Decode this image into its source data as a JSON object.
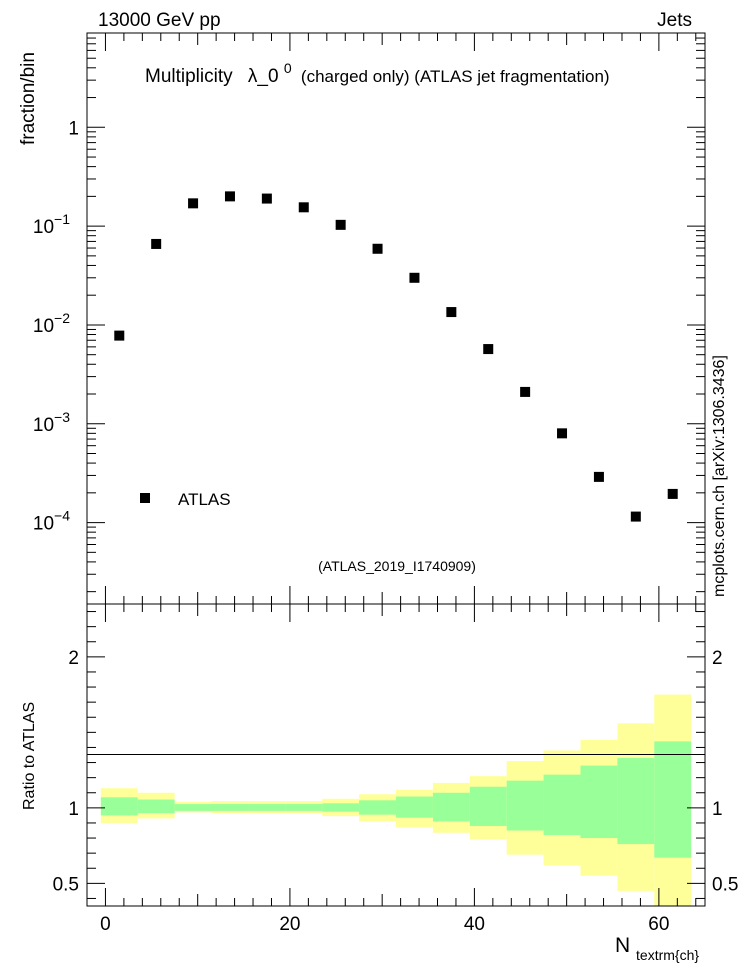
{
  "header": {
    "left": "13000 GeV pp",
    "right": "Jets"
  },
  "side_label": "mcplots.cern.ch [arXiv:1306.3436]",
  "analysis_tag": "(ATLAS_2019_I1740909)",
  "title": {
    "prefix": "Multiplicity",
    "symbol": "λ_0",
    "superscript": "0",
    "suffix": "(charged only) (ATLAS jet fragmentation)"
  },
  "colors": {
    "yellow_band": "#ffff99",
    "green_band": "#99ff99",
    "marker": "#000000",
    "tag": "#999999"
  },
  "chart_data": [
    {
      "type": "scatter",
      "ylabel": "fraction/bin",
      "yscale": "log",
      "ylim": [
        1.5e-05,
        9
      ],
      "xlim": [
        -2,
        65
      ],
      "yticks": [
        {
          "value": 1,
          "base": "1",
          "exp": ""
        },
        {
          "value": 0.1,
          "base": "10",
          "exp": "−1"
        },
        {
          "value": 0.01,
          "base": "10",
          "exp": "−2"
        },
        {
          "value": 0.001,
          "base": "10",
          "exp": "−3"
        },
        {
          "value": 0.0001,
          "base": "10",
          "exp": "−4"
        }
      ],
      "legend": [
        {
          "name": "ATLAS",
          "marker": "square"
        }
      ],
      "series": [
        {
          "name": "ATLAS",
          "x": [
            1.5,
            5.5,
            9.5,
            13.5,
            17.5,
            21.5,
            25.5,
            29.5,
            33.5,
            37.5,
            41.5,
            45.5,
            49.5,
            53.5,
            57.5,
            61.5
          ],
          "y": [
            0.0078,
            0.066,
            0.17,
            0.2,
            0.19,
            0.155,
            0.103,
            0.059,
            0.03,
            0.0135,
            0.0057,
            0.0021,
            0.0008,
            0.00029,
            0.000115,
            0.000195
          ]
        }
      ]
    },
    {
      "type": "area",
      "ylabel": "Ratio to ATLAS",
      "xlabel_main": "N",
      "xlabel_sub": "textrm{ch}",
      "ylim": [
        0.35,
        2.35
      ],
      "xlim": [
        -2,
        65
      ],
      "xticks": [
        0,
        20,
        40,
        60
      ],
      "yticks": [
        0.5,
        1,
        2
      ],
      "ytick_labels": [
        "0.5",
        "1",
        "2"
      ],
      "bins": [
        [
          -0.5,
          3.5
        ],
        [
          3.5,
          7.5
        ],
        [
          7.5,
          11.5
        ],
        [
          11.5,
          15.5
        ],
        [
          15.5,
          19.5
        ],
        [
          19.5,
          23.5
        ],
        [
          23.5,
          27.5
        ],
        [
          27.5,
          31.5
        ],
        [
          31.5,
          35.5
        ],
        [
          35.5,
          39.5
        ],
        [
          39.5,
          43.5
        ],
        [
          43.5,
          47.5
        ],
        [
          47.5,
          51.5
        ],
        [
          51.5,
          55.5
        ],
        [
          55.5,
          59.5
        ],
        [
          59.5,
          63.5
        ]
      ],
      "series": [
        {
          "name": "",
          "band": "yellow",
          "low": [
            0.9,
            0.93,
            0.97,
            0.965,
            0.965,
            0.965,
            0.945,
            0.91,
            0.87,
            0.835,
            0.79,
            0.69,
            0.62,
            0.55,
            0.45,
            0.35
          ],
          "high": [
            1.13,
            1.1,
            1.04,
            1.045,
            1.045,
            1.045,
            1.06,
            1.09,
            1.12,
            1.165,
            1.21,
            1.31,
            1.38,
            1.45,
            1.56,
            1.75
          ]
        },
        {
          "name": "",
          "band": "green",
          "low": [
            0.95,
            0.965,
            0.98,
            0.98,
            0.98,
            0.98,
            0.975,
            0.955,
            0.935,
            0.91,
            0.88,
            0.85,
            0.82,
            0.8,
            0.76,
            0.67
          ],
          "high": [
            1.07,
            1.055,
            1.025,
            1.025,
            1.025,
            1.025,
            1.03,
            1.05,
            1.075,
            1.1,
            1.14,
            1.18,
            1.22,
            1.28,
            1.33,
            1.44
          ]
        }
      ]
    }
  ]
}
